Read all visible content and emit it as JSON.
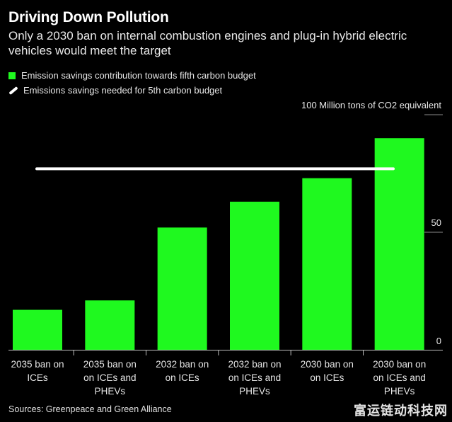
{
  "title": "Driving Down Pollution",
  "subtitle": "Only a 2030 ban on internal combustion engines and plug-in hybrid electric vehicles would meet the target",
  "legend": {
    "bars": "Emission savings contribution towards fifth carbon budget",
    "line": "Emissions savings needed for 5th carbon budget"
  },
  "source": "Sources: Greenpeace and Green Alliance",
  "watermark": "富运链动科技网",
  "colors": {
    "bar": "#1ff91f",
    "target_line": "#ffffff",
    "background": "#000000"
  },
  "chart_data": {
    "type": "bar",
    "title": "Driving Down Pollution",
    "ylabel": "100 Million tons of CO2 equivalent",
    "ylim": [
      0,
      100
    ],
    "yticks": [
      0,
      50,
      100
    ],
    "ytick_labels": [
      "0",
      "50",
      "100 Million tons of CO2 equivalent"
    ],
    "categories": [
      [
        "2035 ban on",
        "ICEs"
      ],
      [
        "2035 ban on",
        "on ICEs and",
        "PHEVs"
      ],
      [
        "2032 ban on",
        "on ICEs"
      ],
      [
        "2032 ban on",
        "on ICEs and",
        "PHEVs"
      ],
      [
        "2030 ban on",
        "on ICEs"
      ],
      [
        "2030 ban on",
        "on ICEs and",
        "PHEVs"
      ]
    ],
    "series": [
      {
        "name": "Emission savings contribution towards fifth carbon budget",
        "values": [
          17,
          21,
          52,
          63,
          73,
          90
        ]
      }
    ],
    "target": {
      "name": "Emissions savings needed for 5th carbon budget",
      "value": 77
    }
  }
}
